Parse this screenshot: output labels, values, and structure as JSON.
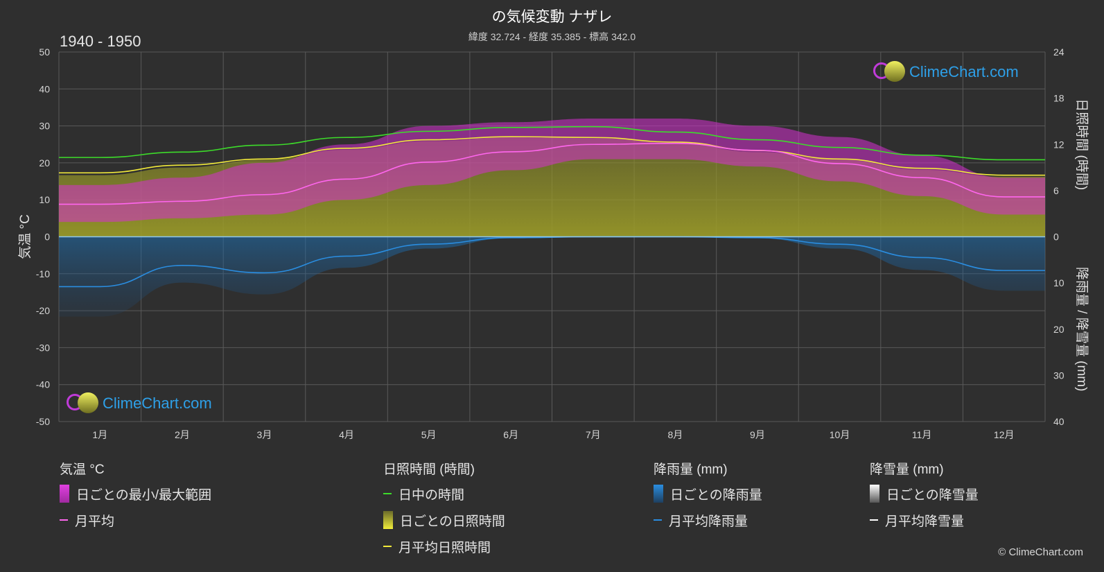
{
  "header": {
    "title": "の気候変動 ナザレ",
    "subtitle": "緯度 32.724 - 経度 35.385 - 標高 342.0",
    "period": "1940 - 1950"
  },
  "logo": {
    "text": "ClimeChart.com"
  },
  "copyright": "© ClimeChart.com",
  "colors": {
    "background": "#2f2f2f",
    "temp_range": "#d62fd0",
    "temp_avg": "#ff66ee",
    "daylight": "#3ddc2a",
    "sunshine_fill": "#9a9a2a",
    "sunshine_avg": "#f2ea3a",
    "rain": "#1e7fcf",
    "rain_avg": "#2a8de0",
    "snow_avg": "#ffffff"
  },
  "chart_data": {
    "type": "line",
    "categories": [
      "1月",
      "2月",
      "3月",
      "4月",
      "5月",
      "6月",
      "7月",
      "8月",
      "9月",
      "10月",
      "11月",
      "12月"
    ],
    "y_left": {
      "label": "気温 °C",
      "ticks": [
        50,
        40,
        30,
        20,
        10,
        0,
        -10,
        -20,
        -30,
        -40,
        -50
      ],
      "range": [
        -50,
        50
      ]
    },
    "y_right_top": {
      "label": "日照時間 (時間)",
      "ticks": [
        24,
        18,
        12,
        6,
        0
      ],
      "range": [
        0,
        24
      ]
    },
    "y_right_bottom": {
      "label": "降雨量 / 降雪量 (mm)",
      "ticks": [
        0,
        10,
        20,
        30,
        40
      ],
      "range": [
        0,
        40
      ]
    },
    "grid": true,
    "series": [
      {
        "name": "月平均",
        "axis": "temperature",
        "values": [
          8.8,
          9.6,
          11.4,
          15.6,
          20.2,
          23.0,
          25.0,
          25.3,
          23.4,
          19.8,
          16.0,
          10.8
        ]
      },
      {
        "name": "日中の時間",
        "axis": "sunshine",
        "values": [
          10.3,
          11.0,
          11.9,
          12.9,
          13.7,
          14.2,
          14.3,
          13.6,
          12.6,
          11.6,
          10.6,
          10.0
        ]
      },
      {
        "name": "月平均日照時間",
        "axis": "sunshine",
        "values": [
          8.3,
          9.3,
          10.1,
          11.5,
          12.6,
          13.0,
          12.9,
          12.3,
          11.2,
          10.1,
          8.9,
          8.0
        ]
      },
      {
        "name": "月平均降雨量",
        "axis": "precipitation",
        "values": [
          10.8,
          6.2,
          7.8,
          4.2,
          1.6,
          0.2,
          0.0,
          0.0,
          0.2,
          1.6,
          4.5,
          7.3
        ]
      },
      {
        "name": "日ごとの最小/最大範囲",
        "axis": "temperature",
        "min": [
          4,
          5,
          6,
          10,
          14,
          18,
          21,
          21,
          19,
          15,
          11,
          6
        ],
        "max": [
          14,
          16,
          20,
          25,
          30,
          31,
          32,
          32,
          30,
          27,
          22,
          16
        ]
      },
      {
        "name": "日ごとの日照時間",
        "axis": "sunshine",
        "values": [
          8.0,
          9.0,
          10.0,
          11.3,
          12.4,
          12.9,
          12.8,
          12.2,
          11.0,
          10.0,
          8.7,
          7.8
        ]
      }
    ]
  },
  "legend": {
    "temperature": {
      "title": "気温 °C",
      "items": [
        "日ごとの最小/最大範囲",
        "月平均"
      ]
    },
    "sunshine": {
      "title": "日照時間 (時間)",
      "items": [
        "日中の時間",
        "日ごとの日照時間",
        "月平均日照時間"
      ]
    },
    "rain": {
      "title": "降雨量 (mm)",
      "items": [
        "日ごとの降雨量",
        "月平均降雨量"
      ]
    },
    "snow": {
      "title": "降雪量 (mm)",
      "items": [
        "日ごとの降雪量",
        "月平均降雪量"
      ]
    }
  }
}
